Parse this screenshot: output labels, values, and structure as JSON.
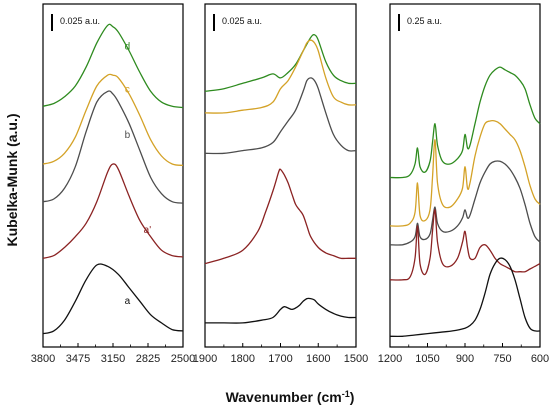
{
  "chart_data": {
    "type": "line",
    "xlabel": "Wavenumber (cm",
    "xlabel_sup": "-1",
    "xlabel_tail": ")",
    "ylabel": "Kubelka-Munk (a.u.)",
    "colors": {
      "d": "#2e8b1f",
      "c": "#d4a227",
      "b": "#4d4d4d",
      "a'": "#8b2323",
      "a": "#111111"
    },
    "panels": [
      {
        "xlim": [
          3800,
          2500
        ],
        "ticks": [
          "3800",
          "3475",
          "3150",
          "2825",
          "2500"
        ],
        "scale_bar": "0.025 a.u.",
        "series": [
          {
            "name": "d",
            "label": "d",
            "x": [
              3800,
              3700,
              3600,
              3500,
              3400,
              3300,
              3200,
              3150,
              3100,
              3000,
              2900,
              2800,
              2700,
              2600,
              2500
            ],
            "y": [
              86.5,
              87.5,
              90,
              94,
              101,
              110,
              116.5,
              116,
              114,
              107,
              99,
              92,
              88,
              86.5,
              86
            ]
          },
          {
            "name": "c",
            "label": "c",
            "x": [
              3800,
              3700,
              3600,
              3500,
              3400,
              3300,
              3200,
              3150,
              3100,
              3000,
              2900,
              2800,
              2700,
              2600,
              2500
            ],
            "y": [
              65,
              66,
              69,
              75,
              85,
              94,
              98,
              98,
              97,
              91,
              83,
              74,
              68,
              65,
              64.5
            ]
          },
          {
            "name": "b",
            "label": "b",
            "x": [
              3800,
              3700,
              3600,
              3500,
              3400,
              3300,
              3200,
              3150,
              3100,
              3000,
              2900,
              2800,
              2700,
              2600,
              2500
            ],
            "y": [
              51,
              52,
              56,
              64,
              77,
              88,
              92,
              91,
              88,
              80,
              70,
              60,
              54,
              51,
              50.5
            ]
          },
          {
            "name": "a'",
            "label": "a'",
            "x": [
              3800,
              3700,
              3600,
              3500,
              3400,
              3300,
              3200,
              3150,
              3100,
              3000,
              2900,
              2800,
              2700,
              2600,
              2500
            ],
            "y": [
              30,
              31,
              34,
              38,
              43,
              51,
              62,
              65,
              63,
              53,
              44,
              38,
              33,
              31,
              30.5
            ]
          },
          {
            "name": "a",
            "label": "a",
            "x": [
              3800,
              3700,
              3600,
              3500,
              3400,
              3300,
              3200,
              3100,
              3000,
              2900,
              2800,
              2700,
              2600,
              2500
            ],
            "y": [
              2,
              3,
              7,
              14,
              22,
              27.5,
              27,
              24,
              19,
              14,
              9,
              6,
              3.5,
              3
            ]
          }
        ]
      },
      {
        "xlim": [
          1900,
          1500
        ],
        "ticks": [
          "1900",
          "1800",
          "1700",
          "1600",
          "1500"
        ],
        "scale_bar": "0.025 a.u.",
        "series": [
          {
            "name": "d",
            "label": "",
            "x": [
              1900,
              1850,
              1800,
              1750,
              1720,
              1700,
              1680,
              1660,
              1640,
              1620,
              1610,
              1600,
              1580,
              1560,
              1540,
              1520,
              1500
            ],
            "y": [
              92,
              93,
              95,
              97,
              98.5,
              97,
              99,
              102,
              107,
              112,
              113,
              111,
              103,
              98,
              96,
              95,
              95
            ]
          },
          {
            "name": "c",
            "label": "",
            "x": [
              1900,
              1850,
              1800,
              1750,
              1720,
              1700,
              1680,
              1660,
              1640,
              1630,
              1620,
              1610,
              1600,
              1580,
              1560,
              1540,
              1520,
              1500
            ],
            "y": [
              84,
              84,
              85,
              86,
              88,
              93,
              96,
              101,
              107,
              110,
              111,
              110,
              107,
              97,
              90,
              88,
              87,
              87
            ]
          },
          {
            "name": "b",
            "label": "",
            "x": [
              1900,
              1850,
              1800,
              1750,
              1720,
              1700,
              1680,
              1660,
              1640,
              1630,
              1620,
              1610,
              1600,
              1580,
              1560,
              1540,
              1520,
              1500
            ],
            "y": [
              69,
              69,
              70,
              71,
              73,
              77,
              81,
              85,
              92,
              96,
              97,
              96,
              93,
              84,
              76,
              72,
              70,
              70
            ]
          },
          {
            "name": "a'",
            "label": "",
            "x": [
              1900,
              1850,
              1800,
              1760,
              1740,
              1720,
              1705,
              1700,
              1690,
              1680,
              1670,
              1660,
              1650,
              1640,
              1630,
              1620,
              1600,
              1580,
              1560,
              1540,
              1520,
              1500
            ],
            "y": [
              28,
              30,
              33,
              40,
              47,
              55,
              62,
              63,
              61,
              58,
              54,
              50,
              48,
              46,
              42,
              38,
              34,
              32,
              31,
              30,
              30,
              30
            ]
          },
          {
            "name": "a",
            "label": "",
            "x": [
              1900,
              1850,
              1800,
              1750,
              1720,
              1700,
              1690,
              1680,
              1670,
              1660,
              1650,
              1640,
              1630,
              1620,
              1610,
              1600,
              1580,
              1560,
              1540,
              1520,
              1500
            ],
            "y": [
              6,
              6,
              6,
              7,
              8,
              11,
              12,
              11.5,
              11,
              11.5,
              12.5,
              14,
              15,
              15,
              14.5,
              13,
              11,
              9.5,
              8.5,
              8,
              8
            ]
          }
        ]
      },
      {
        "xlim": [
          1200,
          600
        ],
        "ticks": [
          "1200",
          "1050",
          "900",
          "750",
          "600"
        ],
        "scale_bar": "0.25 a.u.",
        "series": [
          {
            "name": "d",
            "label": "",
            "x": [
              1200,
              1150,
              1120,
              1100,
              1090,
              1080,
              1060,
              1040,
              1030,
              1020,
              1010,
              990,
              960,
              930,
              910,
              900,
              890,
              880,
              860,
              840,
              820,
              800,
              780,
              760,
              740,
              720,
              700,
              680,
              660,
              640,
              620,
              600
            ],
            "y": [
              60,
              60,
              61,
              65,
              71,
              64,
              62,
              66,
              73,
              80,
              72,
              66,
              65,
              67,
              70,
              76,
              71,
              72,
              80,
              88,
              94,
              98,
              100,
              101,
              100,
              99,
              98,
              96,
              93,
              87,
              82,
              80
            ]
          },
          {
            "name": "c",
            "label": "",
            "x": [
              1200,
              1150,
              1120,
              1100,
              1090,
              1080,
              1060,
              1040,
              1030,
              1020,
              1010,
              990,
              960,
              930,
              910,
              900,
              890,
              880,
              860,
              840,
              820,
              800,
              780,
              760,
              740,
              720,
              700,
              680,
              660,
              640,
              620,
              600
            ],
            "y": [
              42,
              42,
              43,
              47,
              58,
              46,
              44,
              48,
              60,
              74,
              58,
              50,
              49,
              52,
              56,
              64,
              56,
              58,
              68,
              75,
              80,
              81,
              81,
              80,
              78,
              76,
              74,
              70,
              64,
              57,
              52,
              50
            ]
          },
          {
            "name": "b",
            "label": "",
            "x": [
              1200,
              1150,
              1120,
              1100,
              1090,
              1080,
              1060,
              1040,
              1030,
              1020,
              1010,
              990,
              960,
              930,
              910,
              900,
              890,
              880,
              860,
              840,
              820,
              800,
              780,
              760,
              740,
              720,
              700,
              680,
              660,
              640,
              620,
              600
            ],
            "y": [
              35,
              35,
              36,
              38,
              43,
              38,
              37,
              39,
              44,
              49,
              43,
              40,
              40,
              42,
              45,
              48,
              45,
              46,
              52,
              58,
              62,
              65,
              66,
              66,
              65,
              63,
              60,
              56,
              50,
              43,
              38,
              36
            ]
          },
          {
            "name": "a'",
            "label": "",
            "x": [
              1200,
              1150,
              1120,
              1100,
              1090,
              1080,
              1060,
              1040,
              1030,
              1020,
              1010,
              990,
              960,
              930,
              910,
              900,
              890,
              880,
              860,
              840,
              820,
              800,
              780,
              760,
              740,
              720,
              700,
              680,
              660,
              640,
              620,
              600
            ],
            "y": [
              22,
              22,
              23,
              30,
              42,
              28,
              24,
              30,
              40,
              48,
              36,
              28,
              27,
              30,
              36,
              40,
              34,
              30,
              30,
              34,
              35,
              33,
              30,
              28,
              27,
              26,
              25,
              25,
              25,
              26,
              27,
              28
            ]
          },
          {
            "name": "a",
            "label": "",
            "x": [
              1200,
              1150,
              1100,
              1050,
              1000,
              950,
              900,
              880,
              860,
              840,
              820,
              800,
              780,
              760,
              740,
              720,
              700,
              680,
              660,
              640,
              620,
              600
            ],
            "y": [
              1,
              1,
              1.5,
              2,
              2.5,
              3,
              4,
              5,
              7,
              11,
              17,
              24,
              28,
              30,
              29.5,
              27,
              22,
              15,
              8,
              4,
              3,
              3
            ]
          }
        ]
      }
    ]
  }
}
